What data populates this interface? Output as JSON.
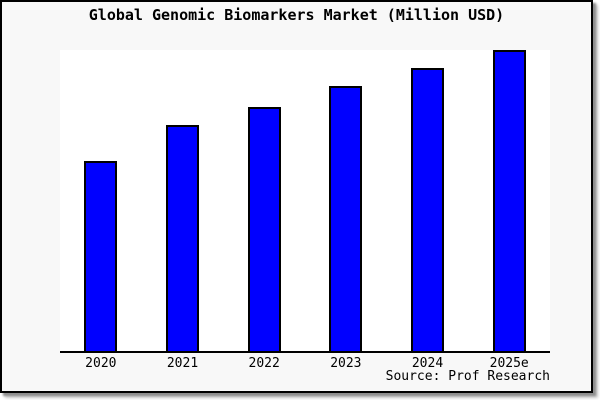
{
  "title": "Global Genomic Biomarkers Market (Million USD)",
  "source_note": "Source: Prof Research",
  "colors": {
    "figure_background": "#f8f8f8",
    "plot_background": "#ffffff",
    "bar_fill": "#0000ff",
    "bar_border": "#000000",
    "frame_border": "#000000",
    "shadow": "#8d8d8d",
    "text": "#000000"
  },
  "chart_data": {
    "type": "bar",
    "title": "Global Genomic Biomarkers Market (Million USD)",
    "categories": [
      "2020",
      "2021",
      "2022",
      "2023",
      "2024",
      "2025e"
    ],
    "values": [
      63,
      75,
      81,
      88,
      94,
      100
    ],
    "value_note": "relative bar heights estimated from pixels; no y-axis tick labels are visible in the image",
    "xlabel": "",
    "ylabel": "",
    "ylim": [
      0,
      100
    ],
    "grid": false,
    "legend": "none",
    "bar_color": "#0000ff",
    "bar_edge_color": "#000000",
    "source": "Source: Prof Research"
  }
}
